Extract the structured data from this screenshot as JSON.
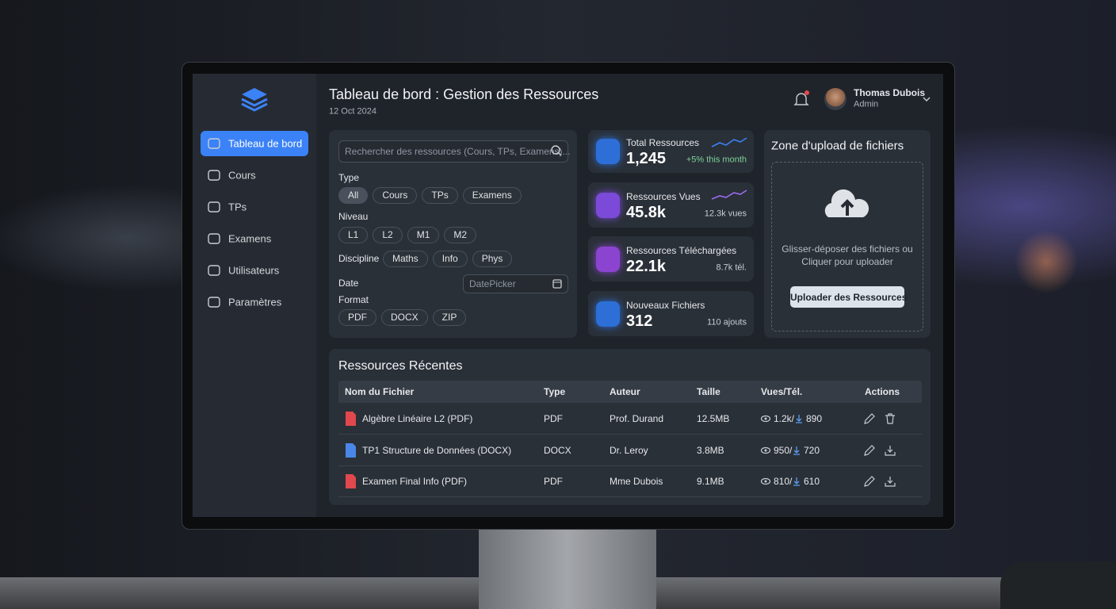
{
  "sidebar": {
    "nav": [
      "Tableau de bord",
      "Cours",
      "TPs",
      "Examens",
      "Utilisateurs",
      "Paramètres"
    ]
  },
  "header": {
    "title": "Tableau de bord : Gestion des Ressources",
    "date": "12 Oct 2024"
  },
  "user": {
    "name": "Thomas Dubois",
    "role": "Admin"
  },
  "filters": {
    "search": "Rechercher des ressources (Cours, TPs, Examens)...",
    "type": {
      "label": "Type",
      "options": [
        "All",
        "Cours",
        "TPs",
        "Examens"
      ]
    },
    "niveau": {
      "label": "Niveau",
      "options": [
        "L1",
        "L2",
        "M1",
        "M2"
      ]
    },
    "discipline": {
      "label": "Discipline",
      "options": [
        "Maths",
        "Info",
        "Phys"
      ]
    },
    "date": {
      "label": "Date",
      "picker": "DatePicker"
    },
    "format": {
      "label": "Format",
      "options": [
        "PDF",
        "DOCX",
        "ZIP"
      ]
    }
  },
  "stats": [
    {
      "label": "Total Ressources",
      "value": "1,245",
      "note": "+5% this month"
    },
    {
      "label": "Ressources Vues",
      "value": "45.8k",
      "note": "12.3k vues"
    },
    {
      "label": "Ressources Téléchargées",
      "value": "22.1k",
      "note": "8.7k tél."
    },
    {
      "label": "Nouveaux Fichiers",
      "value": "312",
      "note": "110 ajouts"
    }
  ],
  "upload": {
    "title": "Zone d'upload de fichiers",
    "text": [
      "Glisser-déposer des fichiers ou",
      "Cliquer pour uploader"
    ],
    "button": "Uploader des Ressources"
  },
  "table": {
    "title": "Ressources Récentes",
    "columns": [
      "Nom du Fichier",
      "Type",
      "Auteur",
      "Taille",
      "Vues/Tél.",
      "Actions"
    ],
    "rows": [
      [
        "Algèbre Linéaire L2 (PDF)",
        "PDF",
        "Prof. Durand",
        "12.5MB",
        "1.2k/",
        "890"
      ],
      [
        "TP1 Structure de Données (DOCX)",
        "DOCX",
        "Dr. Leroy",
        "3.8MB",
        "950/",
        "720"
      ],
      [
        "Examen Final Info (PDF)",
        "PDF",
        "Mme Dubois",
        "9.1MB",
        "810/",
        "610"
      ]
    ]
  }
}
